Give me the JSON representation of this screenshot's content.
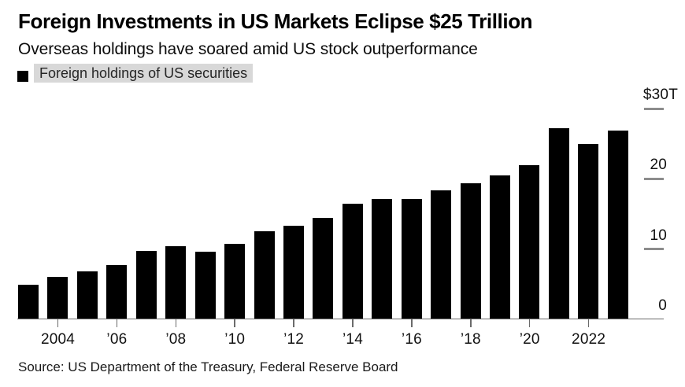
{
  "header": {
    "title": "Foreign Investments in US Markets Eclipse $25 Trillion",
    "subtitle": "Overseas holdings have soared amid US stock outperformance"
  },
  "legend": {
    "marker_color": "#000000",
    "highlight_color": "#d8d8d8",
    "label": "Foreign holdings of US securities"
  },
  "chart_data": {
    "type": "bar",
    "title": "Foreign Investments in US Markets Eclipse $25 Trillion",
    "subtitle": "Overseas holdings have soared amid US stock outperformance",
    "legend_entries": [
      "Foreign holdings of US securities"
    ],
    "unit": "USD trillions",
    "bar_color": "#000000",
    "x": [
      2003,
      2004,
      2005,
      2006,
      2007,
      2008,
      2009,
      2010,
      2011,
      2012,
      2013,
      2014,
      2015,
      2016,
      2017,
      2018,
      2019,
      2020,
      2021,
      2022,
      2023
    ],
    "values": [
      4.9,
      6.0,
      6.8,
      7.7,
      9.7,
      10.4,
      9.6,
      10.7,
      12.5,
      13.3,
      14.4,
      16.5,
      17.1,
      17.1,
      18.4,
      19.4,
      20.5,
      22.0,
      27.2,
      25.0,
      26.9
    ],
    "ylim": [
      0,
      30
    ],
    "yticks": [
      {
        "value": 30,
        "label": "$30T"
      },
      {
        "value": 20,
        "label": "20"
      },
      {
        "value": 10,
        "label": "10"
      },
      {
        "value": 0,
        "label": "0"
      }
    ],
    "xticks": [
      {
        "at": 2004,
        "label": "2004"
      },
      {
        "at": 2006,
        "label": "’06"
      },
      {
        "at": 2008,
        "label": "’08"
      },
      {
        "at": 2010,
        "label": "’10"
      },
      {
        "at": 2012,
        "label": "’12"
      },
      {
        "at": 2014,
        "label": "’14"
      },
      {
        "at": 2016,
        "label": "’16"
      },
      {
        "at": 2018,
        "label": "’18"
      },
      {
        "at": 2020,
        "label": "’20"
      },
      {
        "at": 2022,
        "label": "2022"
      }
    ],
    "grid": "right-side tick dashes only, no gridlines",
    "legend_position": "top-left"
  },
  "footer": {
    "source": "Source: US Department of the Treasury, Federal Reserve Board"
  }
}
